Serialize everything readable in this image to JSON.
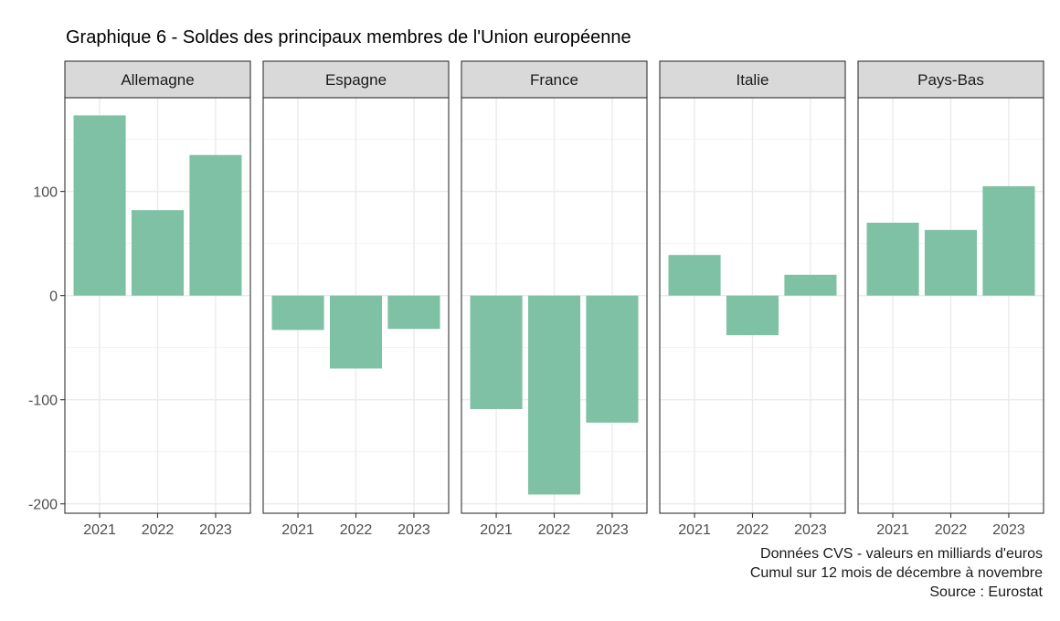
{
  "chart_data": {
    "type": "bar",
    "title": "Graphique 6 - Soldes des principaux membres de l'Union européenne",
    "xlabel": "",
    "ylabel": "",
    "categories": [
      "2021",
      "2022",
      "2023"
    ],
    "facets": [
      {
        "name": "Allemagne",
        "values": [
          173,
          82,
          135
        ]
      },
      {
        "name": "Espagne",
        "values": [
          -33,
          -70,
          -32
        ]
      },
      {
        "name": "France",
        "values": [
          -109,
          -191,
          -122
        ]
      },
      {
        "name": "Italie",
        "values": [
          39,
          -38,
          20
        ]
      },
      {
        "name": "Pays-Bas",
        "values": [
          70,
          63,
          105
        ]
      }
    ],
    "yticks": [
      -200,
      -100,
      0,
      100
    ],
    "ytick_labels": [
      "-200",
      "-100",
      "0",
      "100"
    ],
    "ylim": [
      -209,
      190
    ],
    "grid": true,
    "bar_color": "#7fc1a5",
    "caption": [
      "Données CVS -  valeurs en milliards d'euros",
      "Cumul sur 12 mois de décembre à novembre",
      "Source : Eurostat"
    ]
  }
}
